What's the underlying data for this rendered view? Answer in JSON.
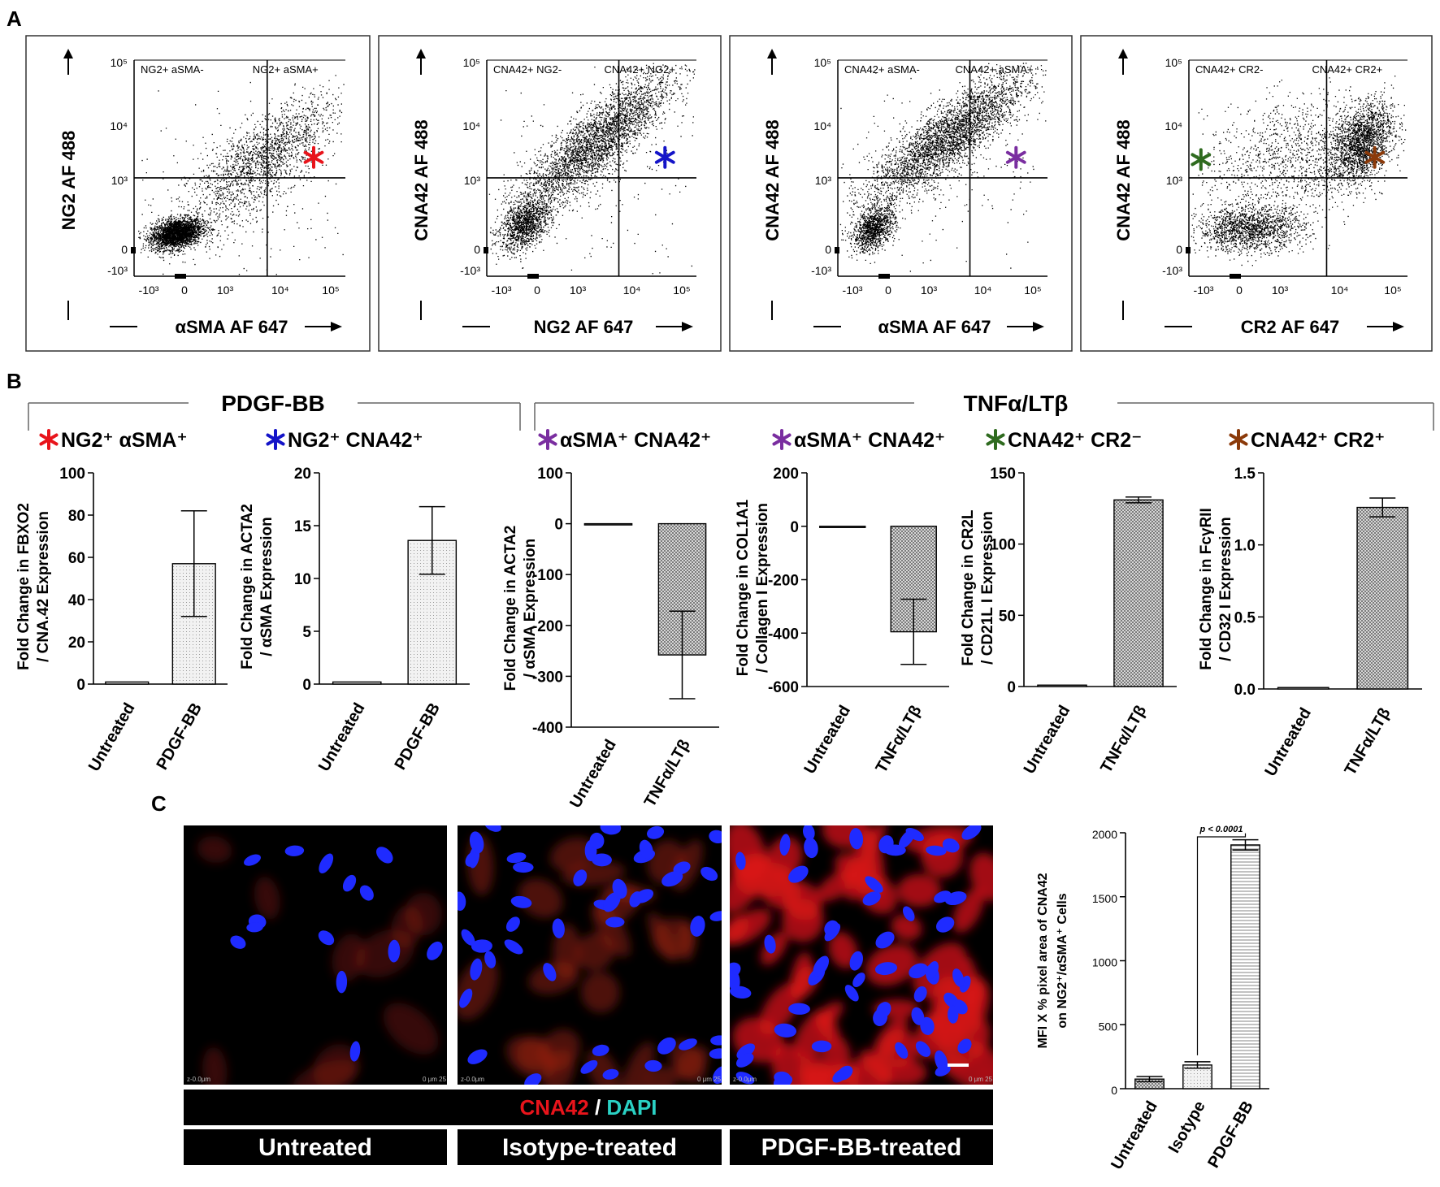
{
  "panel_labels": {
    "a": "A",
    "b": "B",
    "c": "C"
  },
  "colors": {
    "ng2_asma": "#e8141b",
    "ng2_cna42": "#1414c8",
    "asma_cna42": "#7a2ea0",
    "cna42_cr2neg": "#2f6b1f",
    "cna42_cr2pos": "#8b3a0a",
    "dapi": "#2ad1c4",
    "cna42": "#e8141b"
  },
  "flow": [
    {
      "ylabel": "NG2 AF 488",
      "xlabel": "αSMA AF 647",
      "q_left": "NG2+ aSMA-",
      "q_right": "NG2+ aSMA+",
      "marker_color": "#e8141b",
      "marker_pos": "right"
    },
    {
      "ylabel": "CNA42 AF 488",
      "xlabel": "NG2 AF 647",
      "q_left": "CNA42+ NG2-",
      "q_right": "CNA42+ NG2+",
      "marker_color": "#1414c8",
      "marker_pos": "right"
    },
    {
      "ylabel": "CNA42 AF 488",
      "xlabel": "αSMA AF 647",
      "q_left": "CNA42+ aSMA-",
      "q_right": "CNA42+ aSMA+",
      "marker_color": "#7a2ea0",
      "marker_pos": "right"
    },
    {
      "ylabel": "CNA42 AF 488",
      "xlabel": "CR2 AF 647",
      "q_left": "CNA42+ CR2-",
      "q_right": "CNA42+ CR2+",
      "marker_color": "#8b3a0a",
      "marker_pos": "right",
      "marker2_color": "#2f6b1f"
    }
  ],
  "flow_ticks": {
    "y": [
      "10⁵",
      "10⁴",
      "10³",
      "0",
      "-10³"
    ],
    "x": [
      "-10³",
      "0",
      "10³",
      "10⁴",
      "10⁵"
    ]
  },
  "groups": {
    "left": "PDGF-BB",
    "right": "TNFα/LTβ"
  },
  "chart_data": [
    {
      "type": "bar",
      "title": "NG2⁺ αSMA⁺",
      "title_star_color": "#e8141b",
      "ylabel": "Fold Change in FBXO2 / CNA.42 Expression",
      "categories": [
        "Untreated",
        "PDGF-BB"
      ],
      "values": [
        1,
        57
      ],
      "errors": [
        0,
        25
      ],
      "ylim": [
        0,
        100
      ],
      "yticks": [
        0,
        20,
        40,
        60,
        80,
        100
      ]
    },
    {
      "type": "bar",
      "title": "NG2⁺ CNA42⁺",
      "title_star_color": "#1414c8",
      "ylabel": "Fold Change in ACTA2 / αSMA Expression",
      "categories": [
        "Untreated",
        "PDGF-BB"
      ],
      "values": [
        0.2,
        13.6
      ],
      "errors": [
        0,
        3.2
      ],
      "ylim": [
        0,
        20
      ],
      "yticks": [
        0,
        5,
        10,
        15,
        20
      ]
    },
    {
      "type": "bar",
      "title": "αSMA⁺ CNA42⁺",
      "title_star_color": "#7a2ea0",
      "ylabel": "Fold Change in ACTA2 / αSMA Expression",
      "categories": [
        "Untreated",
        "TNFα/LTβ"
      ],
      "values": [
        0,
        -258
      ],
      "errors": [
        0,
        86
      ],
      "ylim": [
        -400,
        100
      ],
      "yticks": [
        -400,
        -300,
        -200,
        -100,
        0,
        100
      ]
    },
    {
      "type": "bar",
      "title": "αSMA⁺ CNA42⁺",
      "title_star_color": "#7a2ea0",
      "ylabel": "Fold Change in COL1A1 / Collagen I Expression",
      "categories": [
        "Untreated",
        "TNFα/LTβ"
      ],
      "values": [
        0,
        -395
      ],
      "errors": [
        0,
        122
      ],
      "ylim": [
        -600,
        200
      ],
      "yticks": [
        -600,
        -400,
        -200,
        0,
        200
      ]
    },
    {
      "type": "bar",
      "title": "CNA42⁺ CR2⁻",
      "title_star_color": "#2f6b1f",
      "ylabel": "Fold Change in CR2L / CD21L I Expression",
      "categories": [
        "Untreated",
        "TNFα/LTβ"
      ],
      "values": [
        1,
        131
      ],
      "errors": [
        0,
        2
      ],
      "ylim": [
        0,
        150
      ],
      "yticks": [
        0,
        50,
        100,
        150
      ]
    },
    {
      "type": "bar",
      "title": "CNA42⁺ CR2⁺",
      "title_star_color": "#8b3a0a",
      "ylabel": "Fold Change in FcγRII / CD32 I Expression",
      "categories": [
        "Untreated",
        "TNFα/LTβ"
      ],
      "values": [
        0.01,
        1.26
      ],
      "errors": [
        0,
        0.065
      ],
      "ylim": [
        0,
        1.5
      ],
      "yticks": [
        0.0,
        0.5,
        1.0,
        1.5
      ]
    },
    {
      "type": "bar",
      "title": "",
      "ylabel": "MFI X % pixel area of CNA42 on NG2⁺/αSMA⁺ Cells",
      "categories": [
        "Untreated",
        "Isotype",
        "PDGF-BB"
      ],
      "values": [
        75,
        185,
        1905
      ],
      "errors": [
        20,
        25,
        40
      ],
      "ylim": [
        0,
        2000
      ],
      "yticks": [
        0,
        500,
        1000,
        1500,
        2000
      ],
      "annotation": "p < 0.0001"
    }
  ],
  "micro": {
    "stain_label_1": "CNA42",
    "stain_sep": " / ",
    "stain_label_2": "DAPI",
    "conditions": [
      "Untreated",
      "Isotype-treated",
      "PDGF-BB-treated"
    ],
    "scale_text": "0 μm 25",
    "z_text": "z-0.0μm"
  }
}
